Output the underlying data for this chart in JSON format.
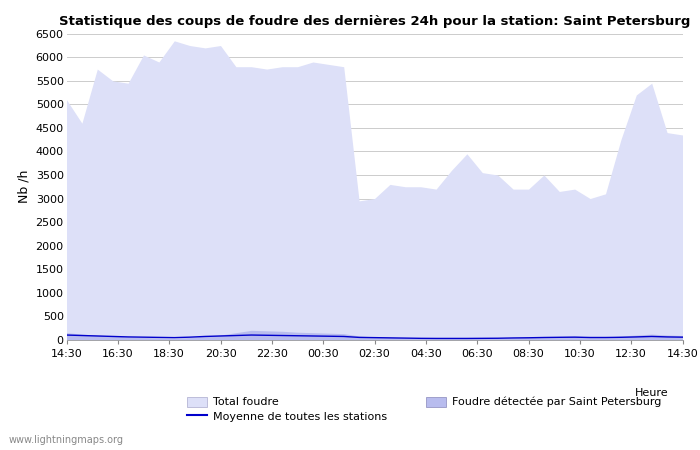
{
  "title": "Statistique des coups de foudre des dernières 24h pour la station: Saint Petersburg",
  "ylabel": "Nb /h",
  "ylim": [
    0,
    6500
  ],
  "yticks": [
    0,
    500,
    1000,
    1500,
    2000,
    2500,
    3000,
    3500,
    4000,
    4500,
    5000,
    5500,
    6000,
    6500
  ],
  "x_labels": [
    "14:30",
    "16:30",
    "18:30",
    "20:30",
    "22:30",
    "00:30",
    "02:30",
    "04:30",
    "06:30",
    "08:30",
    "10:30",
    "12:30",
    "14:30"
  ],
  "bg_color": "#ffffff",
  "grid_color": "#cccccc",
  "fill_total_color": "#dde0f8",
  "fill_station_color": "#b8bcee",
  "line_moyenne_color": "#0000cc",
  "watermark": "www.lightningmaps.org",
  "total_foudre": [
    5100,
    4600,
    5750,
    5500,
    5450,
    6050,
    5900,
    6350,
    6250,
    6200,
    6250,
    5800,
    5800,
    5750,
    5800,
    5800,
    5900,
    5850,
    5800,
    2950,
    3000,
    3300,
    3250,
    3250,
    3200,
    3600,
    3950,
    3550,
    3500,
    3200,
    3200,
    3500,
    3150,
    3200,
    3000,
    3100,
    4250,
    5200,
    5450,
    4400,
    4350
  ],
  "station_foudre": [
    150,
    120,
    100,
    80,
    60,
    50,
    40,
    30,
    50,
    80,
    100,
    150,
    200,
    190,
    180,
    160,
    150,
    140,
    130,
    80,
    60,
    50,
    40,
    30,
    30,
    30,
    30,
    30,
    30,
    40,
    50,
    60,
    70,
    80,
    60,
    60,
    80,
    100,
    120,
    100,
    90
  ],
  "moyenne_line": [
    100,
    90,
    80,
    70,
    60,
    55,
    50,
    45,
    55,
    70,
    80,
    90,
    100,
    95,
    90,
    85,
    80,
    75,
    70,
    50,
    45,
    40,
    35,
    30,
    28,
    28,
    28,
    30,
    32,
    38,
    42,
    48,
    52,
    55,
    48,
    48,
    52,
    60,
    70,
    60,
    55
  ]
}
